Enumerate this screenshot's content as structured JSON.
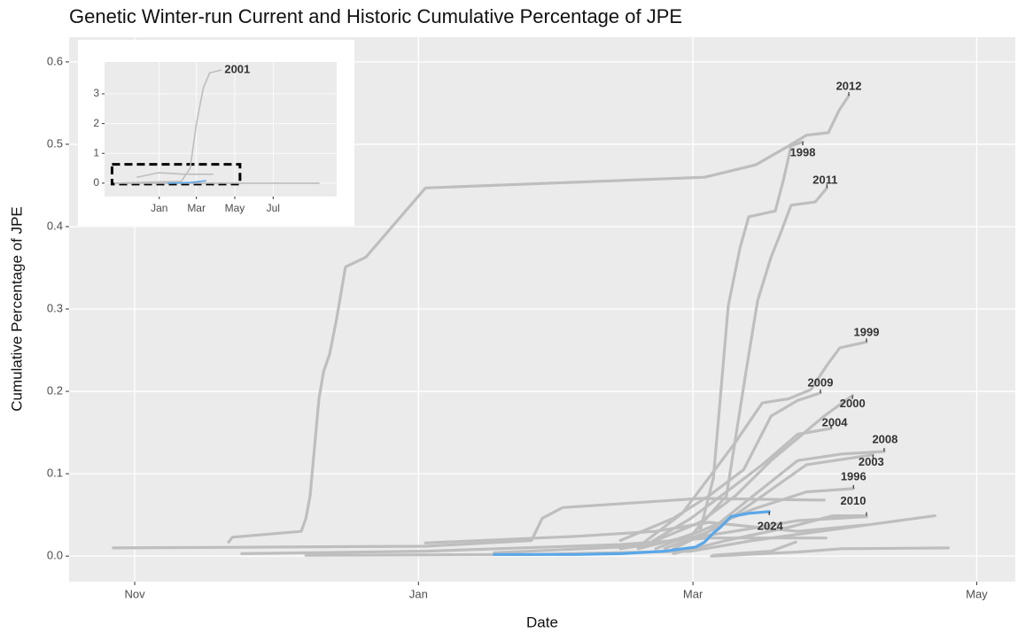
{
  "chart_data": [
    {
      "type": "line",
      "title": "Genetic Winter-run Current and Historic Cumulative Percentage of JPE",
      "x_label": "Date",
      "y_label": "Cumulative Percentage of JPE",
      "xlim": [
        -14.1,
        189.3
      ],
      "xticks": [
        {
          "value": 0,
          "label": "Nov"
        },
        {
          "value": 61,
          "label": "Jan"
        },
        {
          "value": 120,
          "label": "Mar"
        },
        {
          "value": 181,
          "label": "May"
        }
      ],
      "ylim": [
        -0.031,
        0.63
      ],
      "yticks": [
        {
          "value": 0,
          "label": "0.0"
        },
        0.1,
        0.2,
        0.3,
        0.4,
        0.5,
        0.6
      ],
      "grid": true,
      "series": [
        {
          "name": "2012",
          "color": "#bebebe",
          "x": [
            20.2,
            21.0,
            35.8,
            36.8,
            37.7,
            39.6,
            40.6,
            41.9,
            43.4,
            45.3,
            49.7,
            62.5,
            122.5,
            133.5,
            140.6,
            144.4,
            149.1,
            151.4,
            153.5
          ],
          "values": [
            0.017,
            0.023,
            0.03,
            0.046,
            0.073,
            0.191,
            0.224,
            0.245,
            0.288,
            0.351,
            0.363,
            0.447,
            0.46,
            0.475,
            0.498,
            0.511,
            0.514,
            0.541,
            0.559
          ]
        },
        {
          "name": "1998",
          "color": "#bebebe",
          "x": [
            104.4,
            115.8,
            121.5,
            124.4,
            127.6,
            130.1,
            132.0,
            137.7,
            139.6,
            141.1,
            143.6
          ],
          "values": [
            0.009,
            0.019,
            0.03,
            0.095,
            0.304,
            0.374,
            0.412,
            0.419,
            0.46,
            0.498,
            0.503
          ]
        },
        {
          "name": "2011",
          "color": "#bebebe",
          "x": [
            108.2,
            119.6,
            127.2,
            131.4,
            133.9,
            136.8,
            138.7,
            141.1,
            146.3,
            148.8
          ],
          "values": [
            0.009,
            0.025,
            0.073,
            0.224,
            0.31,
            0.363,
            0.39,
            0.426,
            0.43,
            0.447
          ]
        },
        {
          "name": "1999",
          "color": "#bebebe",
          "x": [
            108.2,
            117.7,
            123.4,
            129.1,
            134.9,
            140.6,
            145.3,
            149.1,
            151.6,
            157.3
          ],
          "values": [
            0.011,
            0.052,
            0.095,
            0.138,
            0.186,
            0.191,
            0.202,
            0.234,
            0.253,
            0.26
          ]
        },
        {
          "name": "2009",
          "color": "#bebebe",
          "x": [
            104.4,
            115.8,
            123.4,
            130.9,
            136.8,
            142.5,
            147.4
          ],
          "values": [
            0.019,
            0.046,
            0.073,
            0.105,
            0.17,
            0.189,
            0.198
          ]
        },
        {
          "name": "2000",
          "color": "#bebebe",
          "x": [
            112.0,
            121.5,
            129.1,
            136.8,
            142.5,
            148.2,
            154.3
          ],
          "values": [
            0.019,
            0.041,
            0.073,
            0.116,
            0.143,
            0.17,
            0.195
          ]
        },
        {
          "name": "2004",
          "color": "#bebebe",
          "x": [
            110.1,
            119.6,
            127.2,
            134.9,
            142.5,
            149.7
          ],
          "values": [
            0.014,
            0.046,
            0.078,
            0.111,
            0.148,
            0.155
          ]
        },
        {
          "name": "2008",
          "color": "#bebebe",
          "x": [
            113.9,
            123.4,
            132.9,
            142.5,
            152.0,
            161.1
          ],
          "values": [
            0.009,
            0.03,
            0.073,
            0.116,
            0.124,
            0.127
          ]
        },
        {
          "name": "2003",
          "color": "#bebebe",
          "x": [
            115.8,
            125.3,
            134.9,
            144.4,
            158.7
          ],
          "values": [
            0.009,
            0.035,
            0.073,
            0.111,
            0.123
          ]
        },
        {
          "name": "1996",
          "color": "#bebebe",
          "x": [
            112.0,
            121.5,
            132.9,
            144.4,
            154.5
          ],
          "values": [
            0.009,
            0.03,
            0.057,
            0.078,
            0.082
          ]
        },
        {
          "name": "2010",
          "color": "#bebebe",
          "x": [
            115.8,
            127.2,
            140.6,
            150.1,
            157.3
          ],
          "values": [
            0.003,
            0.019,
            0.035,
            0.049,
            0.049
          ]
        },
        {
          "color": "#bebebe",
          "x": [
            -4.6,
            62.5,
            85.3,
            87.6,
            92.0,
            121.5,
            148.2
          ],
          "values": [
            0.01,
            0.012,
            0.019,
            0.046,
            0.059,
            0.07,
            0.068
          ]
        },
        {
          "color": "#bebebe",
          "x": [
            23.0,
            62.5,
            104.4,
            123.4,
            148.6
          ],
          "values": [
            0.003,
            0.006,
            0.014,
            0.022,
            0.022
          ]
        },
        {
          "color": "#bebebe",
          "x": [
            36.8,
            85.3,
            119.6,
            132.9,
            172.0
          ],
          "values": [
            0.001,
            0.002,
            0.006,
            0.019,
            0.049
          ]
        },
        {
          "color": "#bebebe",
          "x": [
            124.0,
            142.5,
            152.0,
            174.9
          ],
          "values": [
            0.0,
            0.005,
            0.009,
            0.01
          ]
        },
        {
          "color": "#bebebe",
          "x": [
            62.5,
            94.9,
            112.0,
            123.4,
            142.5,
            157.3
          ],
          "values": [
            0.016,
            0.024,
            0.03,
            0.041,
            0.03,
            0.038
          ]
        },
        {
          "color": "#bebebe",
          "x": [
            77.3,
            104.4,
            115.8,
            128.8,
            142.5,
            157.3
          ],
          "values": [
            0.004,
            0.011,
            0.019,
            0.03,
            0.043,
            0.048
          ]
        },
        {
          "color": "#bebebe",
          "x": [
            124.4,
            136.8,
            142.1
          ],
          "values": [
            0.001,
            0.006,
            0.017
          ]
        },
        {
          "name": "2024",
          "color": "#5aa7e8",
          "x": [
            77.3,
            94.9,
            104.4,
            113.9,
            120.6,
            122.5,
            124.4,
            125.9,
            128.2,
            132.0,
            136.4
          ],
          "values": [
            0.002,
            0.002,
            0.003,
            0.006,
            0.011,
            0.017,
            0.028,
            0.035,
            0.048,
            0.052,
            0.054
          ]
        }
      ]
    },
    {
      "type": "line",
      "xlim": [
        -26,
        343
      ],
      "xticks": [
        {
          "value": 61,
          "label": "Jan"
        },
        {
          "value": 120,
          "label": "Mar"
        },
        {
          "value": 181,
          "label": "May"
        },
        {
          "value": 242,
          "label": "Jul"
        }
      ],
      "ylim": [
        -0.45,
        4.07
      ],
      "yticks": [
        0,
        1,
        2,
        3
      ],
      "grid": true,
      "series": [
        {
          "name": "2001",
          "color": "#bebebe",
          "x": [
            -9.4,
            96,
            110,
            120,
            131,
            141,
            159
          ],
          "values": [
            0,
            0.06,
            0.5,
            2.0,
            3.2,
            3.7,
            3.8
          ]
        },
        {
          "color": "#bebebe",
          "x": [
            -9,
            315
          ],
          "values": [
            0,
            0
          ]
        },
        {
          "color": "#bebebe",
          "x": [
            26,
            60,
            100,
            146
          ],
          "values": [
            0.2,
            0.35,
            0.3,
            0.3
          ]
        },
        {
          "color": "#5aa7e8",
          "x": [
            75,
            110,
            135
          ],
          "values": [
            0,
            0.02,
            0.08
          ]
        }
      ]
    }
  ]
}
